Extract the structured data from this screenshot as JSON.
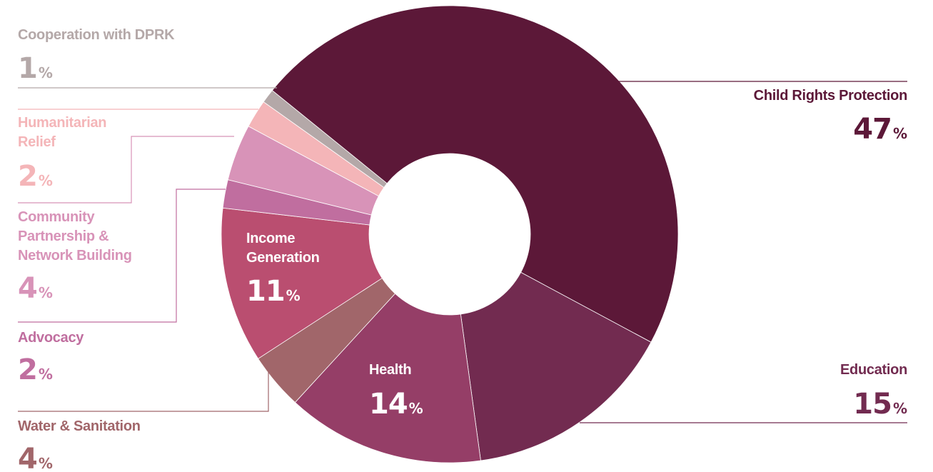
{
  "chart_data": {
    "type": "pie",
    "donut": true,
    "slices": [
      {
        "label": "Child Rights Protection",
        "value": 47,
        "value_text": "47",
        "unit": "%",
        "color": "#5C1838"
      },
      {
        "label": "Education",
        "value": 15,
        "value_text": "15",
        "unit": "%",
        "color": "#722B50"
      },
      {
        "label": "Health",
        "value": 14,
        "value_text": "14",
        "unit": "%",
        "color": "#953E67"
      },
      {
        "label": "Water & Sanitation",
        "value": 4,
        "value_text": "4",
        "unit": "%",
        "color": "#A1666A"
      },
      {
        "label": "Income Generation",
        "value": 11,
        "value_text": "11",
        "unit": "%",
        "color": "#BA4E70"
      },
      {
        "label": "Advocacy",
        "value": 2,
        "value_text": "2",
        "unit": "%",
        "color": "#C06E9F"
      },
      {
        "label": "Community Partnership & Network Building",
        "value": 4,
        "value_text": "4",
        "unit": "%",
        "color": "#D893B8"
      },
      {
        "label": "Humanitarian Relief",
        "value": 2,
        "value_text": "2",
        "unit": "%",
        "color": "#F4B5B8"
      },
      {
        "label": "Cooperation with DPRK",
        "value": 1,
        "value_text": "1",
        "unit": "%",
        "color": "#B4A8A8"
      }
    ]
  }
}
